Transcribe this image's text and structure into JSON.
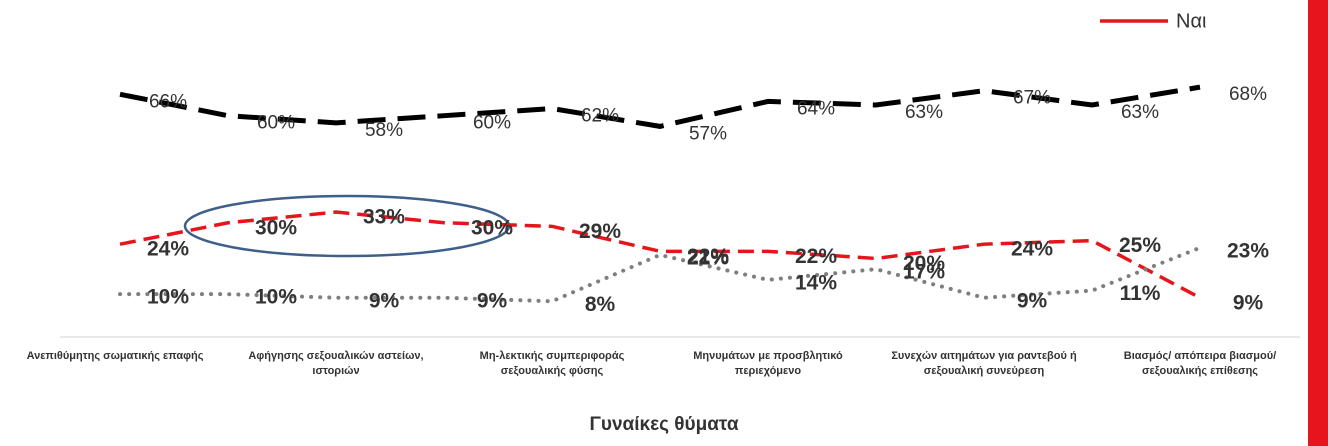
{
  "chart_data": {
    "type": "line",
    "categories": [
      "Ανεπιθύμητης σωματικής επαφής",
      null,
      "Αφήγησης σεξουαλικών αστείων, ιστοριών",
      null,
      "Μη-λεκτικής συμπεριφοράς σεξουαλικής φύσης",
      null,
      "Μηνυμάτων με προσβλητικό περιεχόμενο",
      null,
      "Συνεχών αιτημάτων για ραντεβού ή σεξουαλική συνεύρεση",
      null,
      "Βιασμός/ απόπειρα βιασμού/ σεξουαλικής επίθεσης"
    ],
    "series": [
      {
        "color": "#000000",
        "style": "dashed-thick",
        "values": [
          66,
          60,
          58,
          60,
          62,
          57,
          64,
          63,
          67,
          63,
          68
        ],
        "value_labels": [
          "66%",
          "60%",
          "58%",
          "60%",
          "62%",
          "57%",
          "64%",
          "63%",
          "67%",
          "63%",
          "68%"
        ]
      },
      {
        "name": "Ναι",
        "color": "#e8141c",
        "style": "dashed",
        "values": [
          24,
          30,
          33,
          30,
          29,
          22,
          22,
          20,
          24,
          25,
          9
        ],
        "value_labels": [
          "24%",
          "30%",
          "33%",
          "30%",
          "29%",
          "22%",
          "22%",
          "20%",
          "24%",
          "25%",
          "9%"
        ]
      },
      {
        "color": "#7f7f7f",
        "style": "dotted",
        "values": [
          10,
          10,
          9,
          9,
          8,
          21,
          14,
          17,
          9,
          11,
          23
        ],
        "value_labels": [
          "10%",
          "10%",
          "9%",
          "9%",
          "8%",
          "21%",
          "14%",
          "17%",
          "9%",
          "11%",
          "23%"
        ]
      }
    ],
    "ylim": [
      5,
      70
    ],
    "xlabel": "Γυναίκες θύματα",
    "legend": "top-right"
  }
}
